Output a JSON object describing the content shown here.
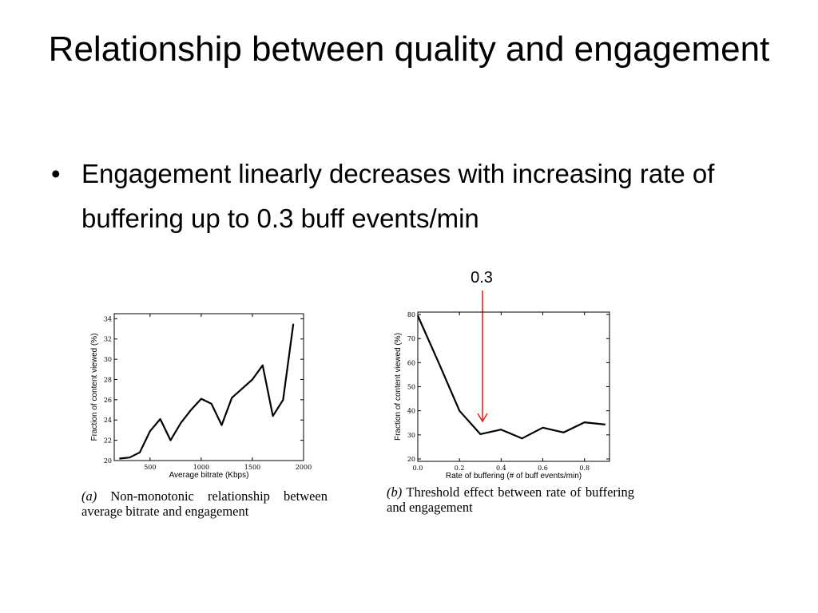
{
  "slide": {
    "title": "Relationship between quality and engagement",
    "bullets": [
      "Engagement linearly decreases with increasing rate of buffering up to 0.3 buff events/min"
    ],
    "marker": {
      "label": "0.3",
      "color": "#e8261f"
    }
  },
  "chart_data": [
    {
      "type": "line",
      "xlabel": "Average bitrate (Kbps)",
      "ylabel": "Fraction of content viewed (%)",
      "xlim": [
        150,
        2000
      ],
      "ylim": [
        20,
        34.5
      ],
      "xticks": [
        500,
        1000,
        1500,
        2000
      ],
      "yticks": [
        20,
        22,
        24,
        26,
        28,
        30,
        32,
        34
      ],
      "x": [
        200,
        300,
        400,
        500,
        600,
        700,
        800,
        900,
        1000,
        1100,
        1200,
        1300,
        1400,
        1500,
        1600,
        1700,
        1800,
        1900
      ],
      "values": [
        20.2,
        20.3,
        20.8,
        22.9,
        24.1,
        22.0,
        23.7,
        25.0,
        26.1,
        25.6,
        23.5,
        26.2,
        27.1,
        28.0,
        29.4,
        24.4,
        26.0,
        33.5
      ],
      "caption_mark": "(a)",
      "caption": "Non-monotonic relationship between average bitrate and engagement",
      "line_color": "#000000",
      "grid": false
    },
    {
      "type": "line",
      "xlabel": "Rate of buffering (# of buff events/min)",
      "ylabel": "Fraction of content viewed (%)",
      "xlim": [
        0,
        0.92
      ],
      "ylim": [
        19,
        81
      ],
      "xticks": [
        0.0,
        0.2,
        0.4,
        0.6,
        0.8
      ],
      "yticks": [
        20,
        30,
        40,
        50,
        60,
        70,
        80
      ],
      "x": [
        0.0,
        0.1,
        0.2,
        0.3,
        0.4,
        0.5,
        0.6,
        0.7,
        0.8,
        0.9
      ],
      "values": [
        79.5,
        60.0,
        40.0,
        30.3,
        32.2,
        28.5,
        33.0,
        31.0,
        35.2,
        34.3
      ],
      "caption_mark": "(b)",
      "caption": "Threshold effect between rate of buffering and engagement",
      "line_color": "#000000",
      "grid": false
    }
  ]
}
